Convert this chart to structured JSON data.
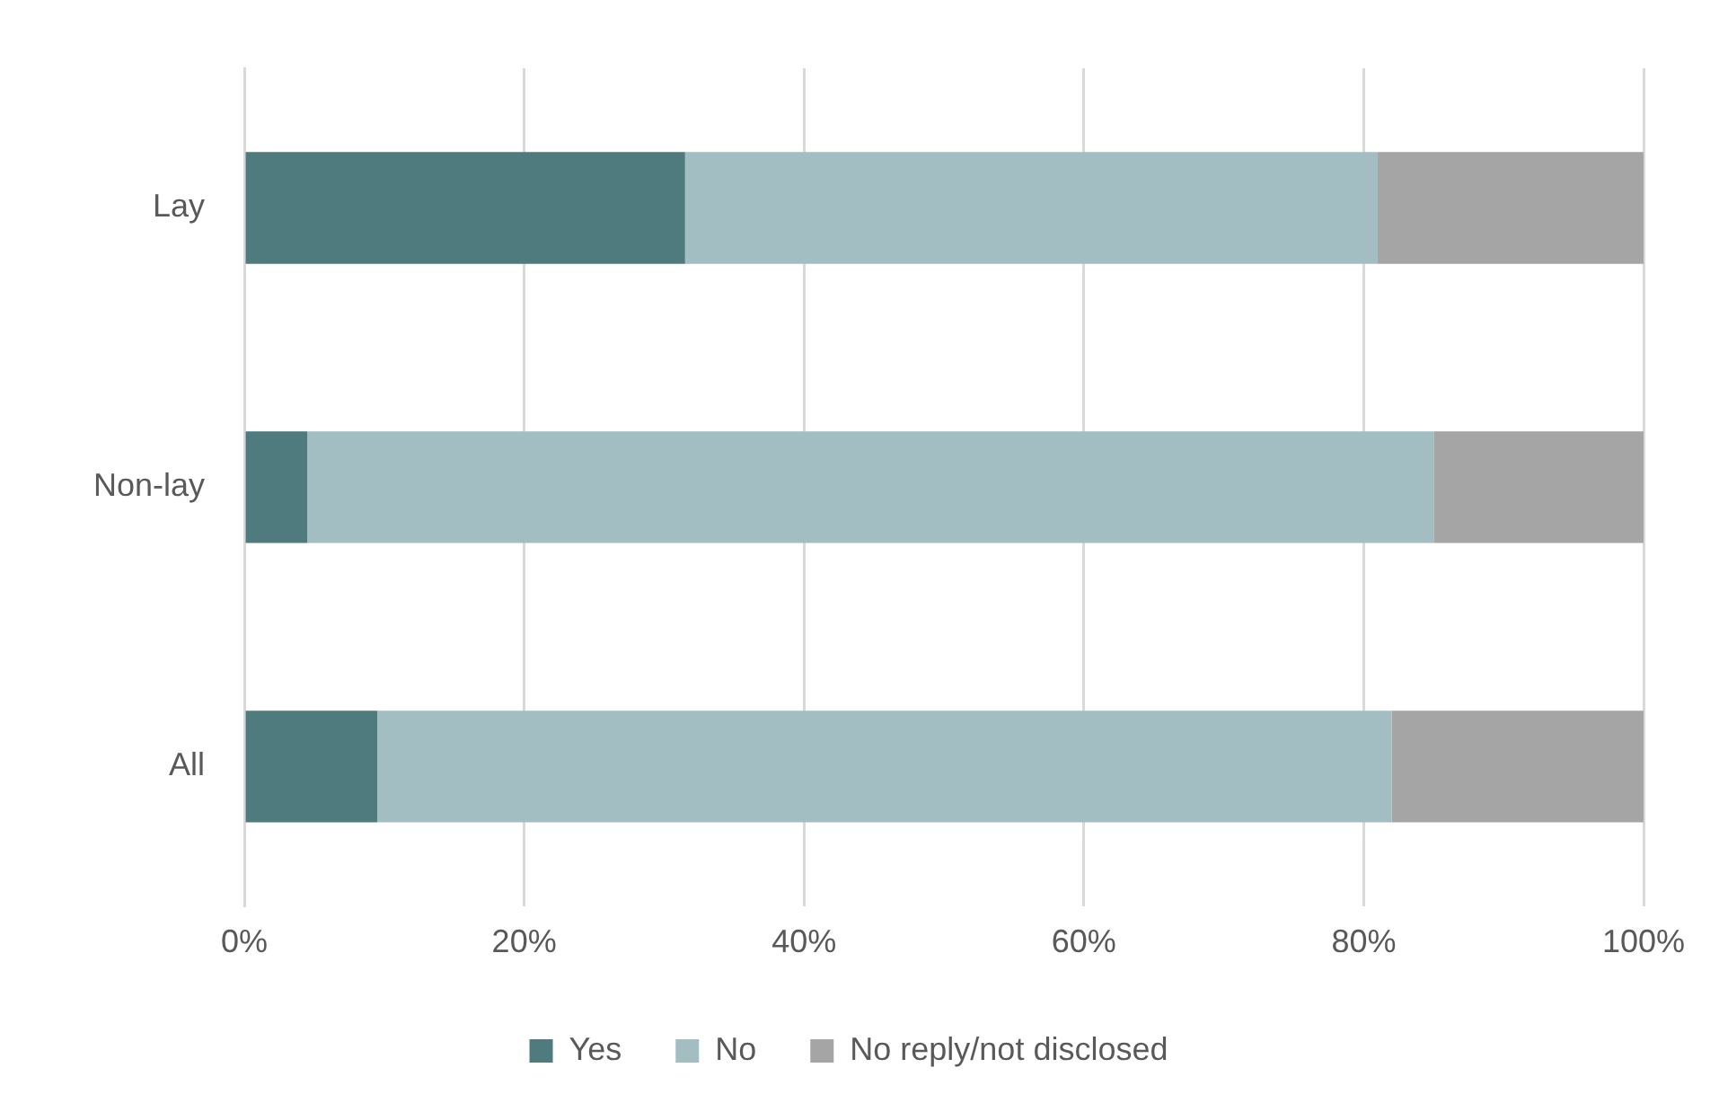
{
  "chart_data": {
    "type": "bar",
    "orientation": "horizontal",
    "stacked": true,
    "categories": [
      "Lay",
      "Non-lay",
      "All"
    ],
    "series": [
      {
        "name": "Yes",
        "color": "#4f7a7e",
        "values": [
          31.5,
          4.5,
          9.5
        ]
      },
      {
        "name": "No",
        "color": "#a3bec2",
        "values": [
          49.5,
          80.5,
          72.5
        ]
      },
      {
        "name": "No reply/not disclosed",
        "color": "#a5a5a5",
        "values": [
          19,
          15,
          18
        ]
      }
    ],
    "xlim": [
      0,
      100
    ],
    "xticks": [
      {
        "value": 0,
        "label": "0%"
      },
      {
        "value": 20,
        "label": "20%"
      },
      {
        "value": 40,
        "label": "40%"
      },
      {
        "value": 60,
        "label": "60%"
      },
      {
        "value": 80,
        "label": "80%"
      },
      {
        "value": 100,
        "label": "100%"
      }
    ],
    "grid": "x",
    "legend": "bottom"
  }
}
